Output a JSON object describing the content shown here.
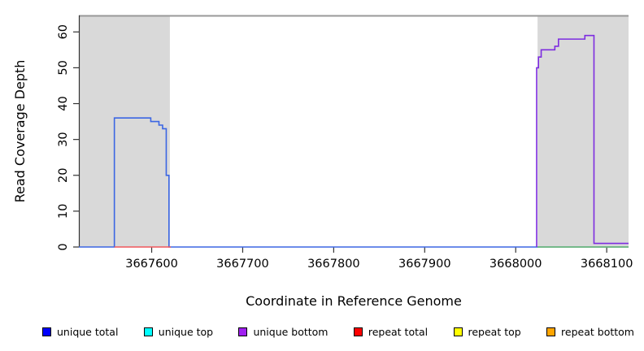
{
  "chart_data": {
    "type": "line",
    "title": "",
    "xlabel": "Coordinate in Reference Genome",
    "ylabel": "Read Coverage Depth",
    "x_range": [
      3667520,
      3668124
    ],
    "y_range": [
      0,
      64.6
    ],
    "x_ticks": [
      3667600,
      3667700,
      3667800,
      3667900,
      3668000,
      3668100
    ],
    "y_ticks": [
      0,
      10,
      20,
      30,
      40,
      50,
      60
    ],
    "grid": "off",
    "styles": {
      "band_color": "#d9d9d9",
      "top_border_color": "#999999",
      "axis_color": "#333333",
      "tick_label_color": "#000000"
    },
    "shaded_regions": [
      {
        "x0": 3667520,
        "x1": 3667620
      },
      {
        "x0": 3668024,
        "x1": 3668124
      }
    ],
    "series": [
      {
        "name": "unique total",
        "color": "#3b66e3",
        "points": [
          [
            3667520,
            0
          ],
          [
            3667559,
            0
          ],
          [
            3667559,
            36
          ],
          [
            3667599,
            36
          ],
          [
            3667599,
            35
          ],
          [
            3667608,
            35
          ],
          [
            3667608,
            34
          ],
          [
            3667612,
            34
          ],
          [
            3667612,
            33
          ],
          [
            3667616,
            33
          ],
          [
            3667616,
            20
          ],
          [
            3667619,
            20
          ],
          [
            3667619,
            0
          ],
          [
            3668124,
            0
          ]
        ]
      },
      {
        "name": "repeat total",
        "color": "#f0575c",
        "points": [
          [
            3667559,
            0
          ],
          [
            3667621,
            0
          ]
        ]
      },
      {
        "name": "green zero line",
        "color": "#6cbf6c",
        "points": [
          [
            3668024,
            0
          ],
          [
            3668124,
            0
          ]
        ]
      },
      {
        "name": "unique bottom",
        "color": "#7d2ce0",
        "points": [
          [
            3668023,
            0
          ],
          [
            3668023,
            50
          ],
          [
            3668025,
            50
          ],
          [
            3668025,
            53
          ],
          [
            3668028,
            53
          ],
          [
            3668028,
            55
          ],
          [
            3668043,
            55
          ],
          [
            3668043,
            56
          ],
          [
            3668047,
            56
          ],
          [
            3668047,
            58
          ],
          [
            3668076,
            58
          ],
          [
            3668076,
            59
          ],
          [
            3668086,
            59
          ],
          [
            3668086,
            1
          ],
          [
            3668124,
            1
          ]
        ]
      }
    ],
    "legend": {
      "position": "bottom",
      "entries": [
        {
          "label": "unique total",
          "color": "#0000ff"
        },
        {
          "label": "unique top",
          "color": "#00ffff"
        },
        {
          "label": "unique bottom",
          "color": "#a020f0"
        },
        {
          "label": "repeat total",
          "color": "#ff0000"
        },
        {
          "label": "repeat top",
          "color": "#ffff00"
        },
        {
          "label": "repeat bottom",
          "color": "#ffa500"
        }
      ]
    }
  }
}
